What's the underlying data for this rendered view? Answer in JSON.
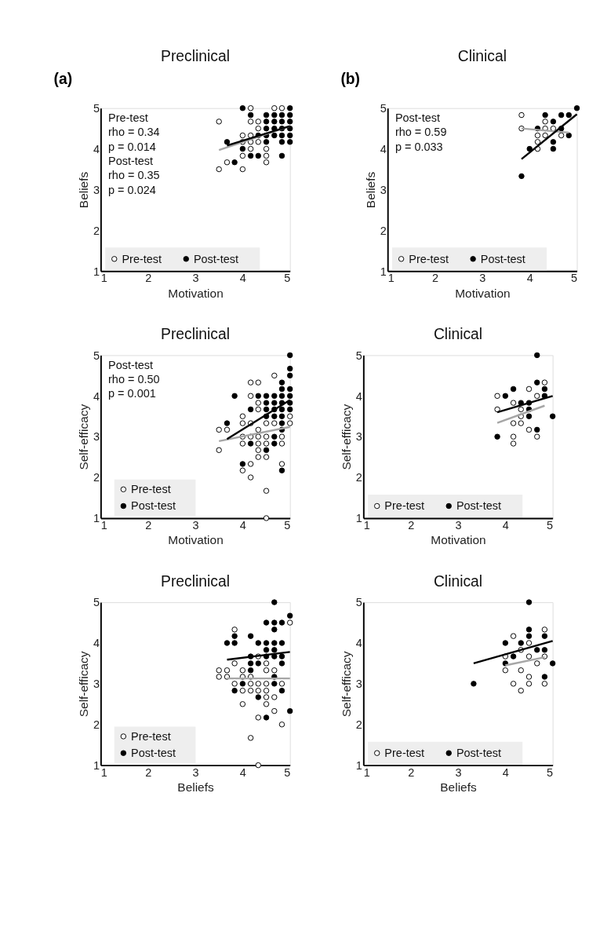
{
  "chart_data": [
    {
      "type": "scatter",
      "title": "Preclinical",
      "xlabel": "Motivation",
      "ylabel": "Beliefs",
      "xlim": [
        1,
        5
      ],
      "ylim": [
        1,
        5
      ],
      "xticks": [
        1,
        2,
        3,
        4,
        5
      ],
      "yticks": [
        1,
        2,
        3,
        4,
        5
      ],
      "marker": "circle",
      "legend": "bottom",
      "annotations": [
        {
          "text": "(a)"
        },
        "Pre-test",
        "rho = 0.34",
        "p = 0.014",
        "Post-test",
        "rho = 0.35",
        "p = 0.024"
      ],
      "series": [
        {
          "name": "Pre-test",
          "color": "#ffffff",
          "x": [
            4.17,
            4.67,
            4.83,
            3.5,
            4.17,
            4.33,
            4.33,
            4.0,
            4.17,
            4.0,
            4.17,
            4.33,
            4.17,
            4.5,
            4.0,
            4.5,
            3.67,
            4.5,
            3.5,
            4.0
          ],
          "values": [
            5,
            5,
            5,
            4.67,
            4.67,
            4.67,
            4.5,
            4.33,
            4.33,
            4.17,
            4.17,
            4.17,
            4.0,
            4.0,
            3.83,
            3.83,
            3.67,
            3.67,
            3.5,
            3.5
          ]
        },
        {
          "name": "Post-test",
          "color": "#000000",
          "x": [
            4.0,
            5.0,
            4.17,
            4.5,
            4.67,
            4.83,
            5.0,
            4.5,
            4.67,
            4.83,
            5.0,
            4.5,
            4.67,
            4.83,
            5.0,
            4.33,
            4.5,
            4.67,
            4.83,
            5.0,
            3.67,
            4.5,
            4.83,
            5.0,
            4.0,
            4.17,
            4.33,
            4.83,
            3.83
          ],
          "values": [
            5,
            5,
            4.83,
            4.83,
            4.83,
            4.83,
            4.83,
            4.67,
            4.67,
            4.67,
            4.67,
            4.5,
            4.5,
            4.5,
            4.5,
            4.33,
            4.33,
            4.33,
            4.33,
            4.33,
            4.17,
            4.17,
            4.17,
            4.17,
            4.0,
            3.83,
            3.83,
            3.83,
            3.67
          ]
        },
        {
          "type": "line",
          "marker": "none",
          "color": "#a6a6a6",
          "x": [
            3.5,
            5.0
          ],
          "values": [
            3.97,
            4.56
          ]
        },
        {
          "type": "line",
          "marker": "none",
          "color": "#000000",
          "x": [
            3.67,
            5.0
          ],
          "values": [
            4.08,
            4.56
          ]
        }
      ]
    },
    {
      "type": "scatter",
      "title": "Clinical",
      "xlabel": "Motivation",
      "ylabel": "Beliefs",
      "xlim": [
        1,
        5
      ],
      "ylim": [
        1,
        5
      ],
      "xticks": [
        1,
        2,
        3,
        4,
        5
      ],
      "yticks": [
        1,
        2,
        3,
        4,
        5
      ],
      "marker": "circle",
      "legend": "bottom",
      "annotations": [
        {
          "text": "(b)"
        },
        "Post-test",
        "rho = 0.59",
        "p = 0.033"
      ],
      "series": [
        {
          "name": "Pre-test",
          "color": "#ffffff",
          "x": [
            3.83,
            4.33,
            3.83,
            4.33,
            4.5,
            4.17,
            4.33,
            4.67,
            4.17,
            4.17
          ],
          "values": [
            4.83,
            4.67,
            4.5,
            4.5,
            4.5,
            4.33,
            4.33,
            4.33,
            4.17,
            4.0
          ]
        },
        {
          "name": "Post-test",
          "color": "#000000",
          "x": [
            5,
            4.33,
            4.67,
            4.83,
            4.5,
            4.17,
            4.67,
            4.83,
            4.5,
            4.0,
            4.5,
            3.83
          ],
          "values": [
            5,
            4.83,
            4.83,
            4.83,
            4.67,
            4.5,
            4.5,
            4.33,
            4.17,
            4.0,
            4.0,
            3.33
          ]
        },
        {
          "type": "line",
          "marker": "none",
          "color": "#a6a6a6",
          "x": [
            3.83,
            4.83
          ],
          "values": [
            4.5,
            4.4
          ]
        },
        {
          "type": "line",
          "marker": "none",
          "color": "#000000",
          "x": [
            3.83,
            5.0
          ],
          "values": [
            3.75,
            4.85
          ]
        }
      ]
    },
    {
      "type": "scatter",
      "title": "Preclinical",
      "xlabel": "Motivation",
      "ylabel": "Self-efficacy",
      "xlim": [
        1,
        5
      ],
      "ylim": [
        1,
        5
      ],
      "xticks": [
        1,
        2,
        3,
        4,
        5
      ],
      "yticks": [
        1,
        2,
        3,
        4,
        5
      ],
      "marker": "circle",
      "legend": "bottom left",
      "annotations": [
        "Post-test",
        "rho = 0.50",
        "p = 0.001"
      ],
      "series": [
        {
          "name": "Pre-test",
          "color": "#ffffff",
          "x": [
            4.67,
            4.17,
            4.33,
            4.17,
            4.33,
            4.33,
            4.0,
            5,
            4.0,
            4.17,
            4.5,
            4.67,
            5,
            3.5,
            3.67,
            4.33,
            4.0,
            4.17,
            4.33,
            4.5,
            4.83,
            4.0,
            4.33,
            4.5,
            4.83,
            3.5,
            4.33,
            4.33,
            4.5,
            4.17,
            4.83,
            4.0,
            4.17,
            4.5,
            4.5
          ],
          "values": [
            4.5,
            4.33,
            4.33,
            4.0,
            3.83,
            3.67,
            3.5,
            3.5,
            3.33,
            3.33,
            3.33,
            3.33,
            3.33,
            3.17,
            3.17,
            3.17,
            3.0,
            3.0,
            3.0,
            3.0,
            3.0,
            2.83,
            2.83,
            2.83,
            2.83,
            2.67,
            2.67,
            2.5,
            2.5,
            2.33,
            2.33,
            2.17,
            2.0,
            1.67,
            1.0
          ]
        },
        {
          "name": "Post-test",
          "color": "#000000",
          "x": [
            5,
            5,
            5,
            4.83,
            4.83,
            5,
            3.83,
            4.33,
            4.5,
            4.67,
            4.83,
            5,
            4.5,
            4.67,
            4.83,
            5,
            4.17,
            4.5,
            4.67,
            4.83,
            5,
            4.5,
            4.67,
            4.83,
            3.67,
            4.83,
            4.83,
            4.67,
            4.17,
            4.67,
            4.5,
            4.0,
            4.83
          ],
          "values": [
            5,
            4.67,
            4.5,
            4.33,
            4.17,
            4.17,
            4.0,
            4.0,
            4.0,
            4.0,
            4.0,
            4.0,
            3.83,
            3.83,
            3.83,
            3.83,
            3.67,
            3.67,
            3.67,
            3.67,
            3.67,
            3.5,
            3.5,
            3.5,
            3.33,
            3.33,
            3.17,
            3.0,
            2.83,
            2.83,
            2.67,
            2.33,
            2.17
          ]
        },
        {
          "type": "line",
          "marker": "none",
          "color": "#a6a6a6",
          "x": [
            3.5,
            5.0
          ],
          "values": [
            2.89,
            3.24
          ]
        },
        {
          "type": "line",
          "marker": "none",
          "color": "#000000",
          "x": [
            3.67,
            5.0
          ],
          "values": [
            2.94,
            3.9
          ]
        }
      ]
    },
    {
      "type": "scatter",
      "title": "Clinical",
      "xlabel": "Motivation",
      "ylabel": "Self-efficacy",
      "xlim": [
        1,
        5
      ],
      "ylim": [
        1,
        5
      ],
      "xticks": [
        1,
        2,
        3,
        4,
        5
      ],
      "yticks": [
        1,
        2,
        3,
        4,
        5
      ],
      "marker": "circle",
      "legend": "bottom",
      "series": [
        {
          "name": "Pre-test",
          "color": "#ffffff",
          "x": [
            4.83,
            4.5,
            3.83,
            4.67,
            4.17,
            3.83,
            4.33,
            4.33,
            4.17,
            4.33,
            4.5,
            4.17,
            4.67,
            4.17
          ],
          "values": [
            4.33,
            4.17,
            4.0,
            4.0,
            3.83,
            3.67,
            3.67,
            3.5,
            3.33,
            3.33,
            3.17,
            3.0,
            3.0,
            2.83
          ]
        },
        {
          "name": "Post-test",
          "color": "#000000",
          "x": [
            4.67,
            4.67,
            4.17,
            4.83,
            4.0,
            4.83,
            4.33,
            4.5,
            4.5,
            4.5,
            5,
            4.67,
            3.83
          ],
          "values": [
            5,
            4.33,
            4.17,
            4.17,
            4.0,
            4.0,
            3.83,
            3.83,
            3.67,
            3.5,
            3.5,
            3.17,
            3.0
          ]
        },
        {
          "type": "line",
          "marker": "none",
          "color": "#a6a6a6",
          "x": [
            3.83,
            4.83
          ],
          "values": [
            3.34,
            3.76
          ]
        },
        {
          "type": "line",
          "marker": "none",
          "color": "#000000",
          "x": [
            3.83,
            5.0
          ],
          "values": [
            3.6,
            4.0
          ]
        }
      ]
    },
    {
      "type": "scatter",
      "title": "Preclinical",
      "xlabel": "Beliefs",
      "ylabel": "Self-efficacy",
      "xlim": [
        1,
        5
      ],
      "ylim": [
        1,
        5
      ],
      "xticks": [
        1,
        2,
        3,
        4,
        5
      ],
      "yticks": [
        1,
        2,
        3,
        4,
        5
      ],
      "marker": "circle",
      "legend": "bottom left",
      "series": [
        {
          "name": "Pre-test",
          "color": "#ffffff",
          "x": [
            5,
            3.83,
            4.33,
            3.83,
            4.5,
            3.5,
            3.67,
            4.0,
            4.5,
            4.67,
            3.5,
            3.67,
            4.0,
            4.17,
            3.83,
            4.17,
            4.33,
            4.5,
            4.83,
            4.0,
            4.17,
            4.33,
            4.5,
            4.5,
            4.67,
            4.0,
            4.5,
            4.67,
            4.33,
            4.83,
            4.17,
            4.33
          ],
          "values": [
            4.5,
            4.33,
            3.67,
            3.5,
            3.5,
            3.33,
            3.33,
            3.33,
            3.33,
            3.33,
            3.17,
            3.17,
            3.17,
            3.17,
            3.0,
            3.0,
            3.0,
            3.0,
            3.0,
            2.83,
            2.83,
            2.83,
            2.83,
            2.67,
            2.67,
            2.5,
            2.5,
            2.33,
            2.17,
            2.0,
            1.67,
            1.0
          ]
        },
        {
          "name": "Post-test",
          "color": "#000000",
          "x": [
            4.67,
            5,
            4.5,
            4.67,
            4.83,
            4.67,
            3.83,
            4.17,
            3.67,
            3.83,
            4.33,
            4.5,
            4.67,
            4.83,
            4.5,
            4.67,
            4.17,
            4.5,
            4.67,
            4.83,
            4.17,
            4.33,
            4.83,
            4.17,
            4.67,
            4.0,
            4.67,
            3.83,
            4.83,
            4.33,
            5,
            4.5
          ],
          "values": [
            5,
            4.67,
            4.5,
            4.5,
            4.5,
            4.33,
            4.17,
            4.17,
            4.0,
            4.0,
            4.0,
            4.0,
            4.0,
            4.0,
            3.83,
            3.83,
            3.67,
            3.67,
            3.67,
            3.67,
            3.5,
            3.5,
            3.5,
            3.33,
            3.17,
            3.0,
            3.0,
            2.83,
            2.83,
            2.67,
            2.33,
            2.17
          ]
        },
        {
          "type": "line",
          "marker": "none",
          "color": "#a6a6a6",
          "x": [
            3.67,
            5.0
          ],
          "values": [
            3.13,
            3.13
          ]
        },
        {
          "type": "line",
          "marker": "none",
          "color": "#000000",
          "x": [
            3.67,
            5.0
          ],
          "values": [
            3.59,
            3.78
          ]
        }
      ]
    },
    {
      "type": "scatter",
      "title": "Clinical",
      "xlabel": "Beliefs",
      "ylabel": "Self-efficacy",
      "xlim": [
        1,
        5
      ],
      "ylim": [
        1,
        5
      ],
      "xticks": [
        1,
        2,
        3,
        4,
        5
      ],
      "yticks": [
        1,
        2,
        3,
        4,
        5
      ],
      "marker": "circle",
      "legend": "bottom",
      "series": [
        {
          "name": "Pre-test",
          "color": "#ffffff",
          "x": [
            4.83,
            4.17,
            4.5,
            4.33,
            4.0,
            4.5,
            4.83,
            4.67,
            4.0,
            4.33,
            4.5,
            4.17,
            4.5,
            4.83,
            4.33
          ],
          "values": [
            4.33,
            4.17,
            4.0,
            3.83,
            3.67,
            3.67,
            3.67,
            3.5,
            3.33,
            3.33,
            3.17,
            3.0,
            3.0,
            3.0,
            2.83
          ]
        },
        {
          "name": "Post-test",
          "color": "#000000",
          "x": [
            4.5,
            4.5,
            4.5,
            4.83,
            4.0,
            4.33,
            4.67,
            4.83,
            4.17,
            4.0,
            5,
            4.83,
            3.33
          ],
          "values": [
            5,
            4.33,
            4.17,
            4.17,
            4.0,
            4.0,
            3.83,
            3.83,
            3.67,
            3.5,
            3.5,
            3.17,
            3.0
          ]
        },
        {
          "type": "line",
          "marker": "none",
          "color": "#a6a6a6",
          "x": [
            4.0,
            4.83
          ],
          "values": [
            3.45,
            3.65
          ]
        },
        {
          "type": "line",
          "marker": "none",
          "color": "#000000",
          "x": [
            3.33,
            5.0
          ],
          "values": [
            3.5,
            4.05
          ]
        }
      ]
    }
  ]
}
